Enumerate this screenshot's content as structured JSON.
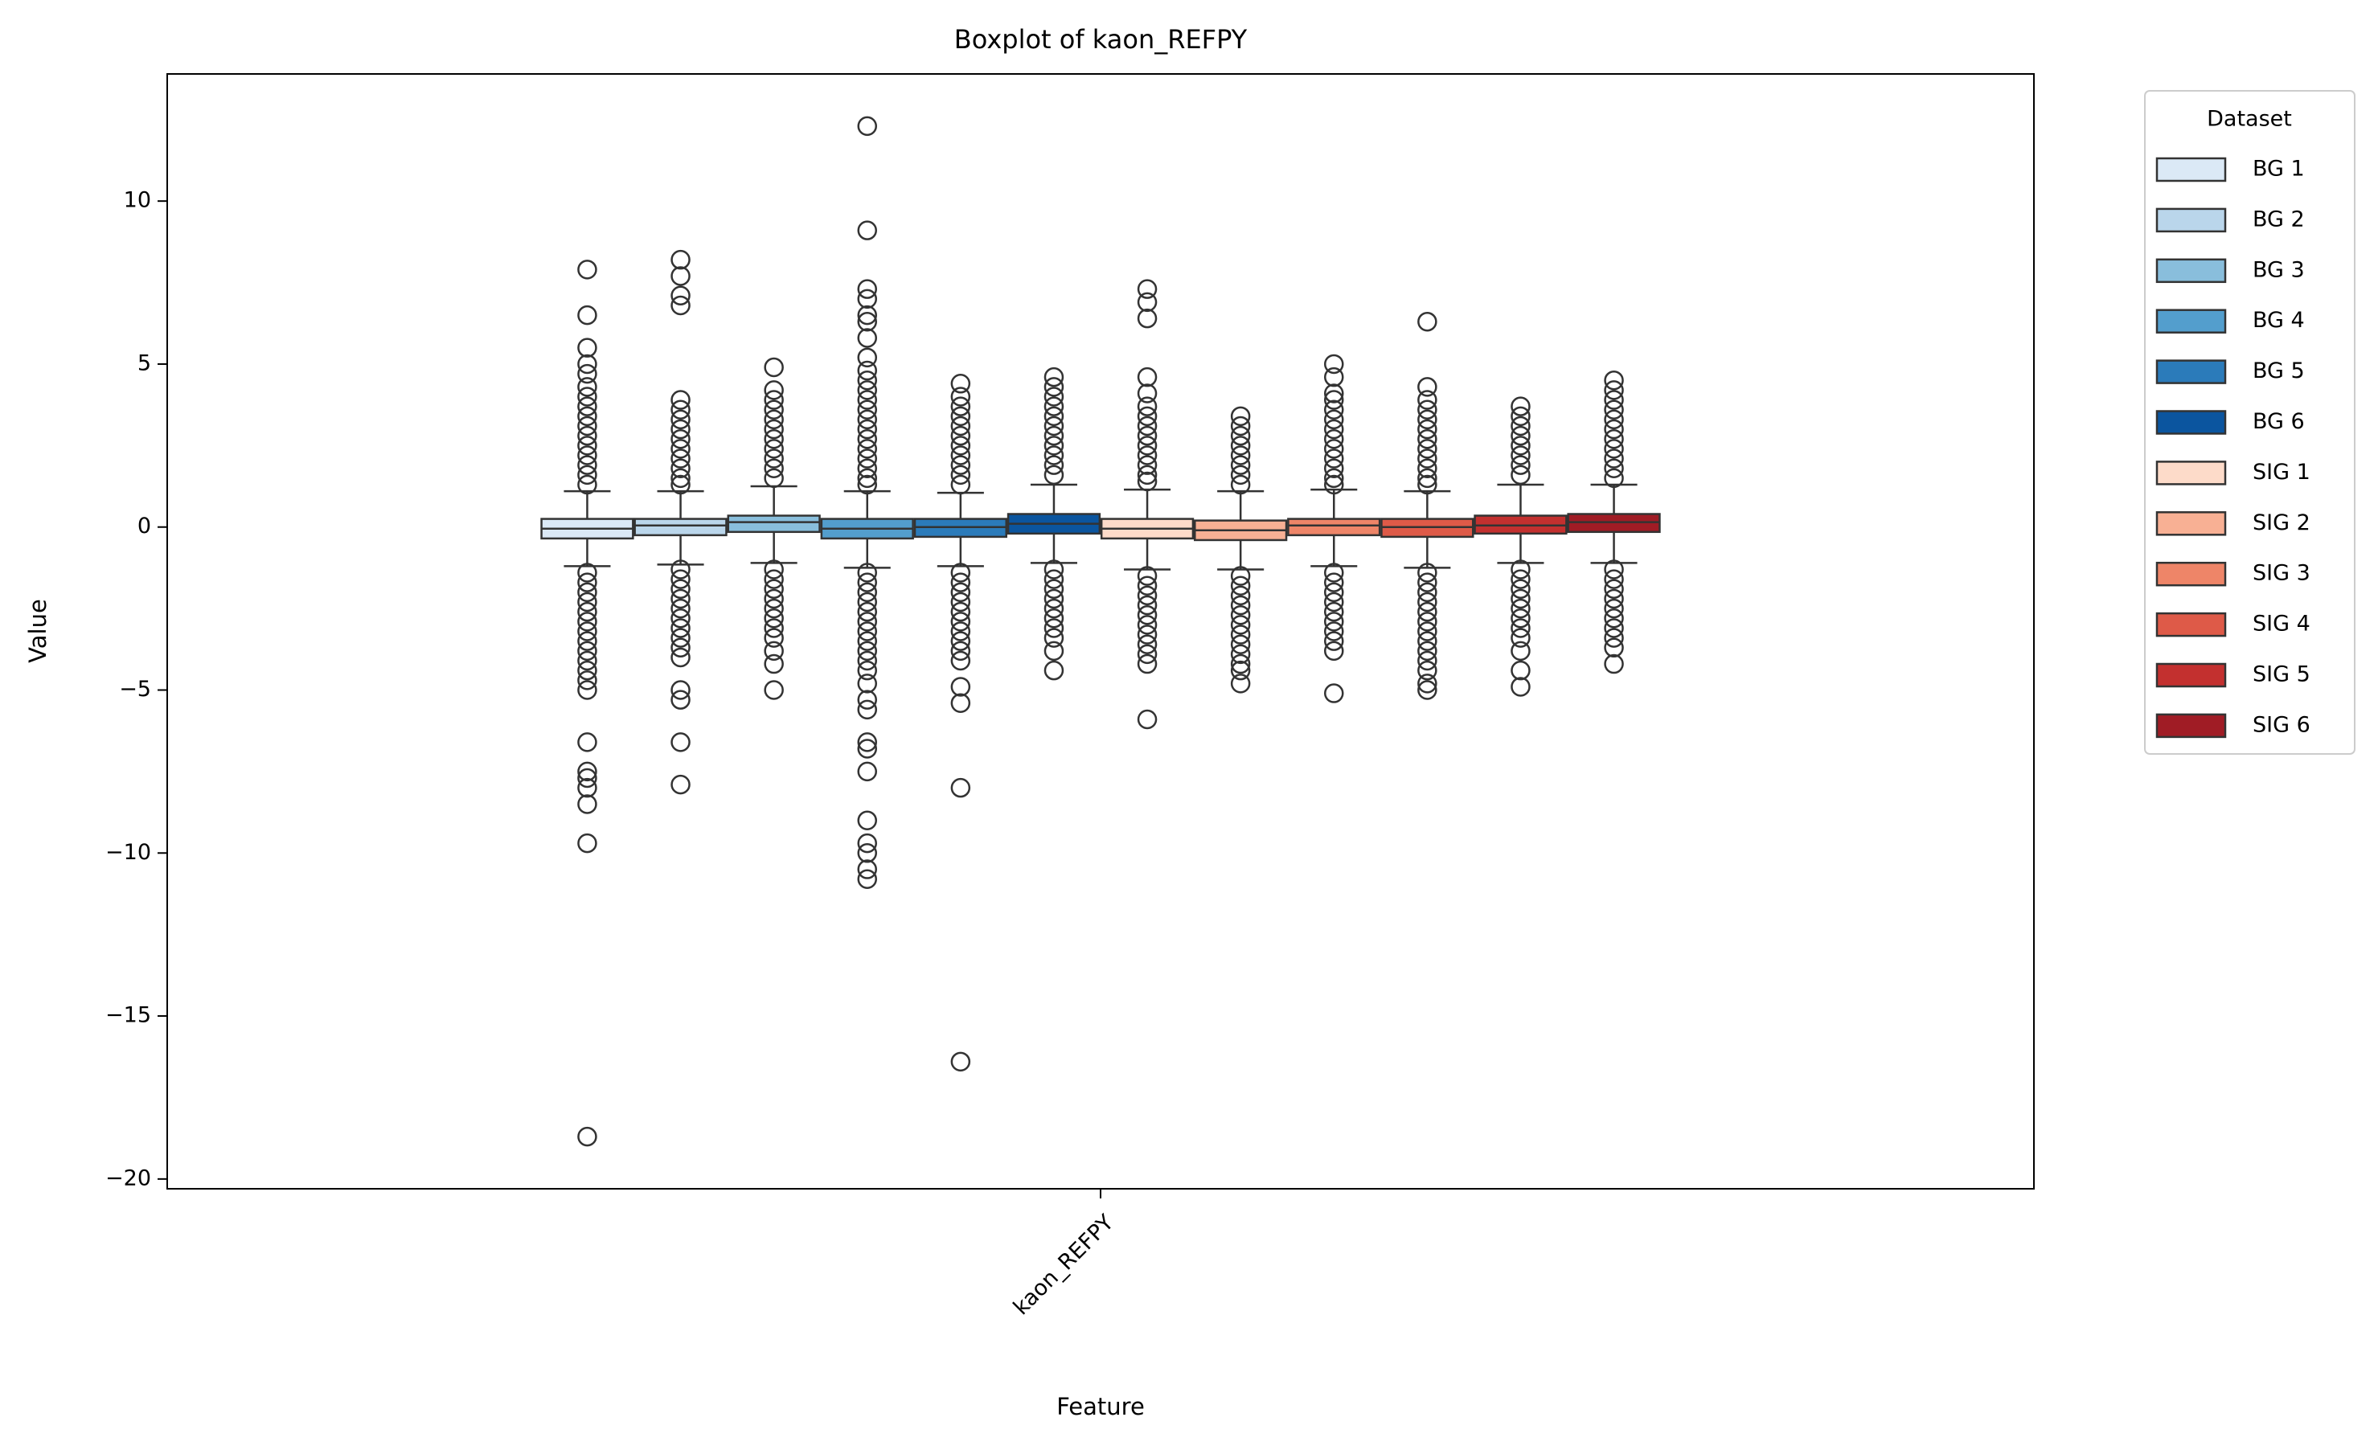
{
  "chart_data": {
    "type": "box",
    "title": "Boxplot of kaon_REFPY",
    "xlabel": "Feature",
    "ylabel": "Value",
    "categories": [
      "kaon_REFPY"
    ],
    "legend_title": "Dataset",
    "legend": "outside upper right",
    "ylim": [
      -20.3,
      13.9
    ],
    "yticks": [
      {
        "value": -20,
        "label": "−20"
      },
      {
        "value": -15,
        "label": "−15"
      },
      {
        "value": -10,
        "label": "−10"
      },
      {
        "value": -5,
        "label": "−5"
      },
      0,
      5,
      10
    ],
    "series": [
      {
        "name": "BG 1",
        "color": "#dbe9f6",
        "q1": -0.35,
        "median": -0.05,
        "q3": 0.25,
        "whislo": -1.2,
        "whishi": 1.1,
        "fliers": [
          7.9,
          6.5,
          5.5,
          5.0,
          4.7,
          4.3,
          4.0,
          3.7,
          3.4,
          3.1,
          2.8,
          2.5,
          2.2,
          1.9,
          1.6,
          1.3,
          -1.4,
          -1.7,
          -2.0,
          -2.3,
          -2.6,
          -2.9,
          -3.2,
          -3.5,
          -3.8,
          -4.1,
          -4.4,
          -4.7,
          -5.0,
          -6.6,
          -7.5,
          -7.7,
          -8.0,
          -8.5,
          -9.7,
          -18.7
        ]
      },
      {
        "name": "BG 2",
        "color": "#bad6eb",
        "q1": -0.25,
        "median": 0.05,
        "q3": 0.25,
        "whislo": -1.15,
        "whishi": 1.1,
        "fliers": [
          8.2,
          7.7,
          7.1,
          6.8,
          3.9,
          3.6,
          3.3,
          3.0,
          2.7,
          2.4,
          2.1,
          1.8,
          1.5,
          1.3,
          -1.3,
          -1.6,
          -1.9,
          -2.2,
          -2.5,
          -2.8,
          -3.1,
          -3.4,
          -3.7,
          -4.0,
          -5.0,
          -5.3,
          -6.6,
          -7.9
        ]
      },
      {
        "name": "BG 3",
        "color": "#89bedc",
        "q1": -0.15,
        "median": 0.15,
        "q3": 0.35,
        "whislo": -1.1,
        "whishi": 1.25,
        "fliers": [
          4.9,
          4.2,
          3.9,
          3.6,
          3.3,
          3.0,
          2.7,
          2.4,
          2.1,
          1.8,
          1.5,
          -1.3,
          -1.6,
          -1.9,
          -2.2,
          -2.5,
          -2.8,
          -3.1,
          -3.4,
          -3.8,
          -4.2,
          -5.0
        ]
      },
      {
        "name": "BG 4",
        "color": "#539ecd",
        "q1": -0.35,
        "median": -0.05,
        "q3": 0.25,
        "whislo": -1.25,
        "whishi": 1.1,
        "fliers": [
          12.3,
          9.1,
          7.3,
          7.0,
          6.5,
          6.3,
          5.8,
          5.2,
          4.8,
          4.5,
          4.2,
          3.9,
          3.6,
          3.3,
          3.0,
          2.7,
          2.4,
          2.1,
          1.8,
          1.5,
          1.3,
          -1.4,
          -1.7,
          -2.0,
          -2.3,
          -2.6,
          -2.9,
          -3.2,
          -3.5,
          -3.8,
          -4.1,
          -4.4,
          -4.8,
          -5.3,
          -5.6,
          -6.6,
          -6.8,
          -7.5,
          -9.0,
          -9.7,
          -10.0,
          -10.5,
          -10.8
        ]
      },
      {
        "name": "BG 5",
        "color": "#2b7bba",
        "q1": -0.3,
        "median": 0.0,
        "q3": 0.25,
        "whislo": -1.2,
        "whishi": 1.05,
        "fliers": [
          4.4,
          4.0,
          3.7,
          3.4,
          3.1,
          2.8,
          2.5,
          2.2,
          1.9,
          1.6,
          1.3,
          -1.4,
          -1.7,
          -2.0,
          -2.3,
          -2.6,
          -2.9,
          -3.2,
          -3.5,
          -3.8,
          -4.1,
          -4.9,
          -5.4,
          -8.0,
          -16.4
        ]
      },
      {
        "name": "BG 6",
        "color": "#0b559f",
        "q1": -0.2,
        "median": 0.1,
        "q3": 0.4,
        "whislo": -1.1,
        "whishi": 1.3,
        "fliers": [
          4.6,
          4.3,
          4.0,
          3.7,
          3.4,
          3.1,
          2.8,
          2.5,
          2.2,
          1.9,
          1.6,
          -1.3,
          -1.6,
          -1.9,
          -2.2,
          -2.5,
          -2.8,
          -3.1,
          -3.4,
          -3.8,
          -4.4
        ]
      },
      {
        "name": "SIG 1",
        "color": "#fddbc9",
        "q1": -0.35,
        "median": -0.05,
        "q3": 0.25,
        "whislo": -1.3,
        "whishi": 1.15,
        "fliers": [
          7.3,
          6.9,
          6.4,
          4.6,
          4.1,
          3.7,
          3.4,
          3.1,
          2.8,
          2.5,
          2.2,
          1.9,
          1.6,
          1.4,
          -1.5,
          -1.8,
          -2.1,
          -2.4,
          -2.7,
          -3.0,
          -3.3,
          -3.6,
          -3.9,
          -4.2,
          -5.9
        ]
      },
      {
        "name": "SIG 2",
        "color": "#f8b094",
        "q1": -0.4,
        "median": -0.1,
        "q3": 0.2,
        "whislo": -1.3,
        "whishi": 1.1,
        "fliers": [
          3.4,
          3.1,
          2.8,
          2.5,
          2.2,
          1.9,
          1.6,
          1.3,
          -1.5,
          -1.8,
          -2.1,
          -2.4,
          -2.7,
          -3.0,
          -3.3,
          -3.6,
          -3.9,
          -4.2,
          -4.4,
          -4.8
        ]
      },
      {
        "name": "SIG 3",
        "color": "#ee8568",
        "q1": -0.25,
        "median": 0.05,
        "q3": 0.25,
        "whislo": -1.2,
        "whishi": 1.15,
        "fliers": [
          5.0,
          4.6,
          4.1,
          3.9,
          3.6,
          3.3,
          3.0,
          2.7,
          2.4,
          2.1,
          1.8,
          1.5,
          1.3,
          -1.4,
          -1.7,
          -2.0,
          -2.3,
          -2.6,
          -2.9,
          -3.2,
          -3.5,
          -3.8,
          -5.1
        ]
      },
      {
        "name": "SIG 4",
        "color": "#de5a48",
        "q1": -0.3,
        "median": 0.0,
        "q3": 0.25,
        "whislo": -1.25,
        "whishi": 1.1,
        "fliers": [
          6.3,
          4.3,
          3.9,
          3.6,
          3.3,
          3.0,
          2.7,
          2.4,
          2.1,
          1.8,
          1.5,
          1.3,
          -1.4,
          -1.7,
          -2.0,
          -2.3,
          -2.6,
          -2.9,
          -3.2,
          -3.5,
          -3.8,
          -4.1,
          -4.4,
          -4.8,
          -5.0
        ]
      },
      {
        "name": "SIG 5",
        "color": "#c3302f",
        "q1": -0.2,
        "median": 0.05,
        "q3": 0.35,
        "whislo": -1.1,
        "whishi": 1.3,
        "fliers": [
          3.7,
          3.4,
          3.1,
          2.8,
          2.5,
          2.2,
          1.9,
          1.6,
          -1.3,
          -1.6,
          -1.9,
          -2.2,
          -2.5,
          -2.8,
          -3.1,
          -3.4,
          -3.8,
          -4.4,
          -4.9
        ]
      },
      {
        "name": "SIG 6",
        "color": "#a01c25",
        "q1": -0.15,
        "median": 0.15,
        "q3": 0.4,
        "whislo": -1.1,
        "whishi": 1.3,
        "fliers": [
          4.5,
          4.2,
          3.9,
          3.6,
          3.3,
          3.0,
          2.7,
          2.4,
          2.1,
          1.8,
          1.5,
          -1.3,
          -1.6,
          -1.9,
          -2.2,
          -2.5,
          -2.8,
          -3.1,
          -3.4,
          -3.7,
          -4.2
        ]
      }
    ]
  }
}
